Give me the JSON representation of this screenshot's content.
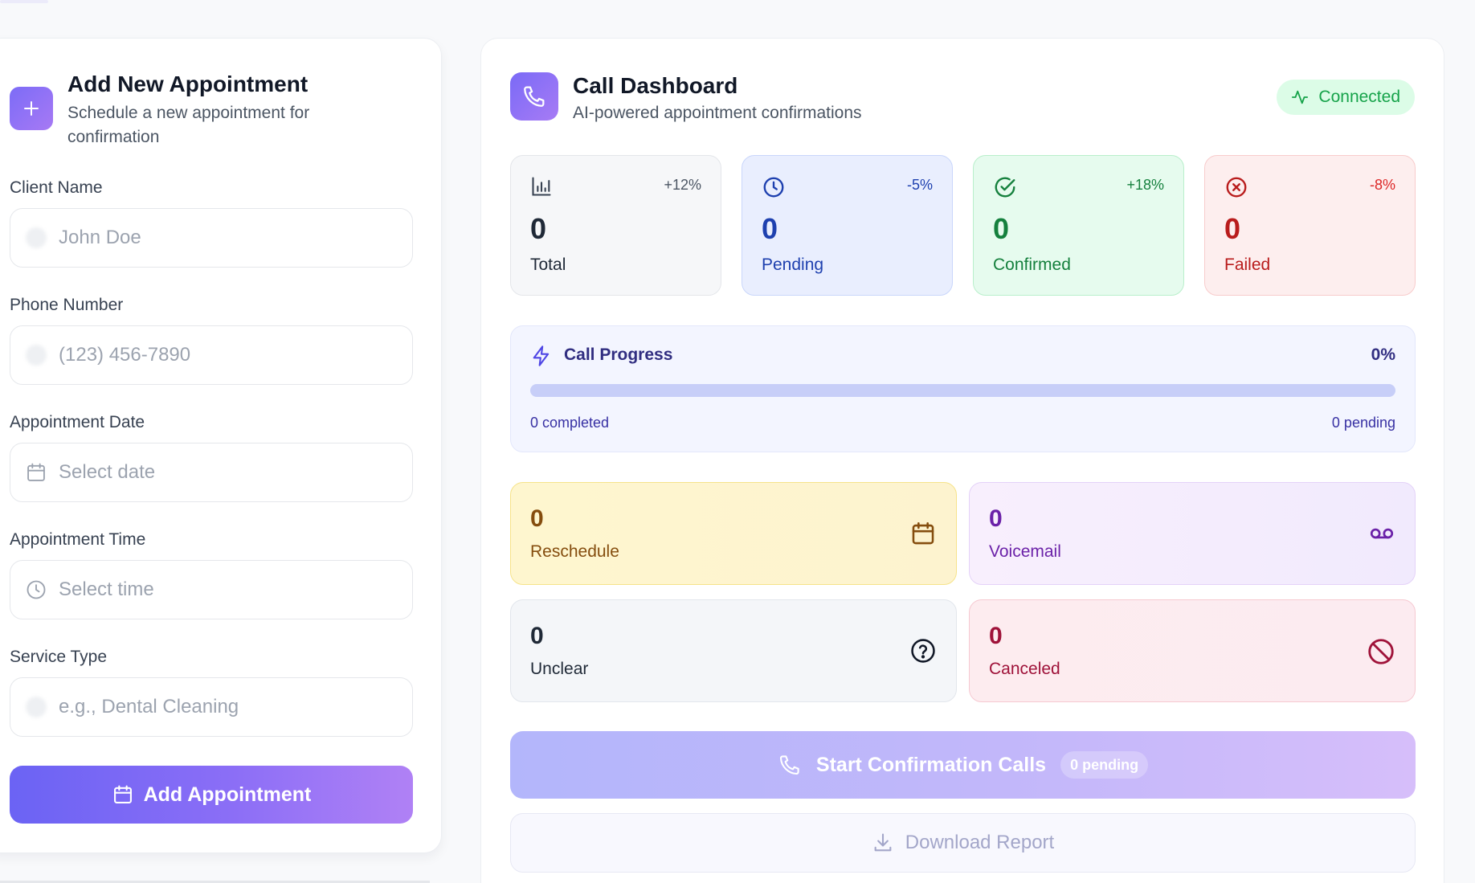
{
  "form": {
    "title": "Add New Appointment",
    "subtitle": "Schedule a new appointment for confirmation",
    "fields": [
      {
        "label": "Client Name",
        "placeholder": "John Doe",
        "value": "",
        "icon": "user-icon"
      },
      {
        "label": "Phone Number",
        "placeholder": "(123) 456-7890",
        "value": "",
        "icon": "phone-icon"
      },
      {
        "label": "Appointment Date",
        "placeholder": "Select date",
        "value": "",
        "icon": "calendar-icon"
      },
      {
        "label": "Appointment Time",
        "placeholder": "Select time",
        "value": "",
        "icon": "clock-icon"
      },
      {
        "label": "Service Type",
        "placeholder": "e.g., Dental Cleaning",
        "value": "",
        "icon": "service-icon"
      }
    ],
    "submit_label": "Add Appointment"
  },
  "dashboard": {
    "title": "Call Dashboard",
    "subtitle": "AI-powered appointment confirmations",
    "status": "Connected",
    "stats": [
      {
        "label": "Total",
        "value": "0",
        "delta": "+12%",
        "icon": "bar-chart-icon"
      },
      {
        "label": "Pending",
        "value": "0",
        "delta": "-5%",
        "icon": "clock-icon"
      },
      {
        "label": "Confirmed",
        "value": "0",
        "delta": "+18%",
        "icon": "check-circle-icon"
      },
      {
        "label": "Failed",
        "value": "0",
        "delta": "-8%",
        "icon": "x-circle-icon"
      }
    ],
    "progress": {
      "title": "Call Progress",
      "percent_label": "0%",
      "fraction": 0,
      "completed_label": "0 completed",
      "pending_label": "0 pending"
    },
    "outcomes": [
      {
        "label": "Reschedule",
        "value": "0",
        "icon": "calendar-icon"
      },
      {
        "label": "Voicemail",
        "value": "0",
        "icon": "voicemail-icon"
      },
      {
        "label": "Unclear",
        "value": "0",
        "icon": "help-circle-icon"
      },
      {
        "label": "Canceled",
        "value": "0",
        "icon": "ban-icon"
      }
    ],
    "start_button": {
      "label": "Start Confirmation Calls",
      "badge": "0 pending"
    },
    "download_label": "Download Report"
  },
  "colors": {
    "accent": "#6b63f4",
    "connected": "#16a34a",
    "pending": "#1e40af",
    "confirmed": "#15803d",
    "failed": "#dc2626"
  }
}
